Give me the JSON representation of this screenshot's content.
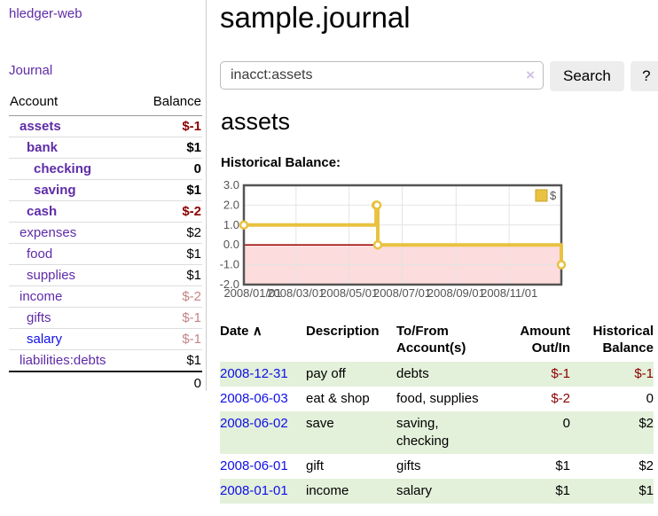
{
  "colors": {
    "purple": "#5e2ca7",
    "blue": "#0f0fe8",
    "neg": "#8b0000",
    "negdim": "#c48484",
    "green": "#e3f0da",
    "chart_gold": "#e8c240",
    "chart_grey": "#545454"
  },
  "sidebar": {
    "app_title": "hledger-web",
    "nav_journal": "Journal",
    "accounts": {
      "header_account": "Account",
      "header_balance": "Balance",
      "rows": [
        {
          "name": "assets",
          "balance": "$-1",
          "depth": 1,
          "bold": true
        },
        {
          "name": "bank",
          "balance": "$1",
          "depth": 2,
          "bold": true
        },
        {
          "name": "checking",
          "balance": "0",
          "depth": 3,
          "bold": true
        },
        {
          "name": "saving",
          "balance": "$1",
          "depth": 3,
          "bold": true
        },
        {
          "name": "cash",
          "balance": "$-2",
          "depth": 2,
          "bold": true
        },
        {
          "name": "expenses",
          "balance": "$2",
          "depth": 1,
          "bold": false
        },
        {
          "name": "food",
          "balance": "$1",
          "depth": 2,
          "bold": false
        },
        {
          "name": "supplies",
          "balance": "$1",
          "depth": 2,
          "bold": false
        },
        {
          "name": "income",
          "balance": "$-2",
          "depth": 1,
          "bold": false
        },
        {
          "name": "gifts",
          "balance": "$-1",
          "depth": 2,
          "bold": false
        },
        {
          "name": "salary",
          "balance": "$-1",
          "depth": 2,
          "bold": false,
          "unvisited": true
        },
        {
          "name": "liabilities:debts",
          "balance": "$1",
          "depth": 1,
          "bold": false
        }
      ],
      "total": "0"
    }
  },
  "main": {
    "title": "sample.journal",
    "search": {
      "value": "inacct:assets",
      "clear_icon": "×",
      "search_label": "Search",
      "help_label": "?"
    },
    "account_heading": "assets",
    "chart_heading": "Historical Balance:"
  },
  "chart_data": {
    "type": "line",
    "step": true,
    "title": "Historical Balance:",
    "series": [
      {
        "name": "$",
        "color": "#e8c240",
        "points": [
          [
            "2008-01-01",
            1
          ],
          [
            "2008-06-01",
            2
          ],
          [
            "2008-06-02",
            2
          ],
          [
            "2008-06-03",
            0
          ],
          [
            "2008-12-31",
            -1
          ]
        ]
      }
    ],
    "x_range": [
      "2008-01-01",
      "2008-12-31"
    ],
    "x_ticks": [
      "2008/01/01",
      "2008/03/01",
      "2008/05/01",
      "2008/07/01",
      "2008/09/01",
      "2008/11/01"
    ],
    "y_ticks": [
      3.0,
      2.0,
      1.0,
      0.0,
      -1.0,
      -2.0
    ],
    "ylim": [
      -2,
      3
    ],
    "grid": true,
    "negative_region_fill": "#fcdcdc",
    "zero_line_color": "#990000",
    "legend": {
      "label": "$",
      "position": "top-right"
    }
  },
  "transactions": {
    "sort_indicator": "∧",
    "headers": {
      "date": {
        "l1": "Date"
      },
      "description": {
        "l1": "Description"
      },
      "accounts": {
        "l1": "To/From",
        "l2": "Account(s)"
      },
      "amount": {
        "l1": "Amount",
        "l2": "Out/In"
      },
      "balance": {
        "l1": "Historical",
        "l2": "Balance"
      }
    },
    "rows": [
      {
        "date": "2008-12-31",
        "description": "pay off",
        "accounts": "debts",
        "amount": "$-1",
        "balance": "$-1",
        "shaded": true
      },
      {
        "date": "2008-06-03",
        "description": "eat & shop",
        "accounts": "food, supplies",
        "amount": "$-2",
        "balance": "0",
        "shaded": false
      },
      {
        "date": "2008-06-02",
        "description": "save",
        "accounts": "saving, checking",
        "amount": "0",
        "balance": "$2",
        "shaded": true
      },
      {
        "date": "2008-06-01",
        "description": "gift",
        "accounts": "gifts",
        "amount": "$1",
        "balance": "$2",
        "shaded": false
      },
      {
        "date": "2008-01-01",
        "description": "income",
        "accounts": "salary",
        "amount": "$1",
        "balance": "$1",
        "shaded": true
      }
    ]
  }
}
